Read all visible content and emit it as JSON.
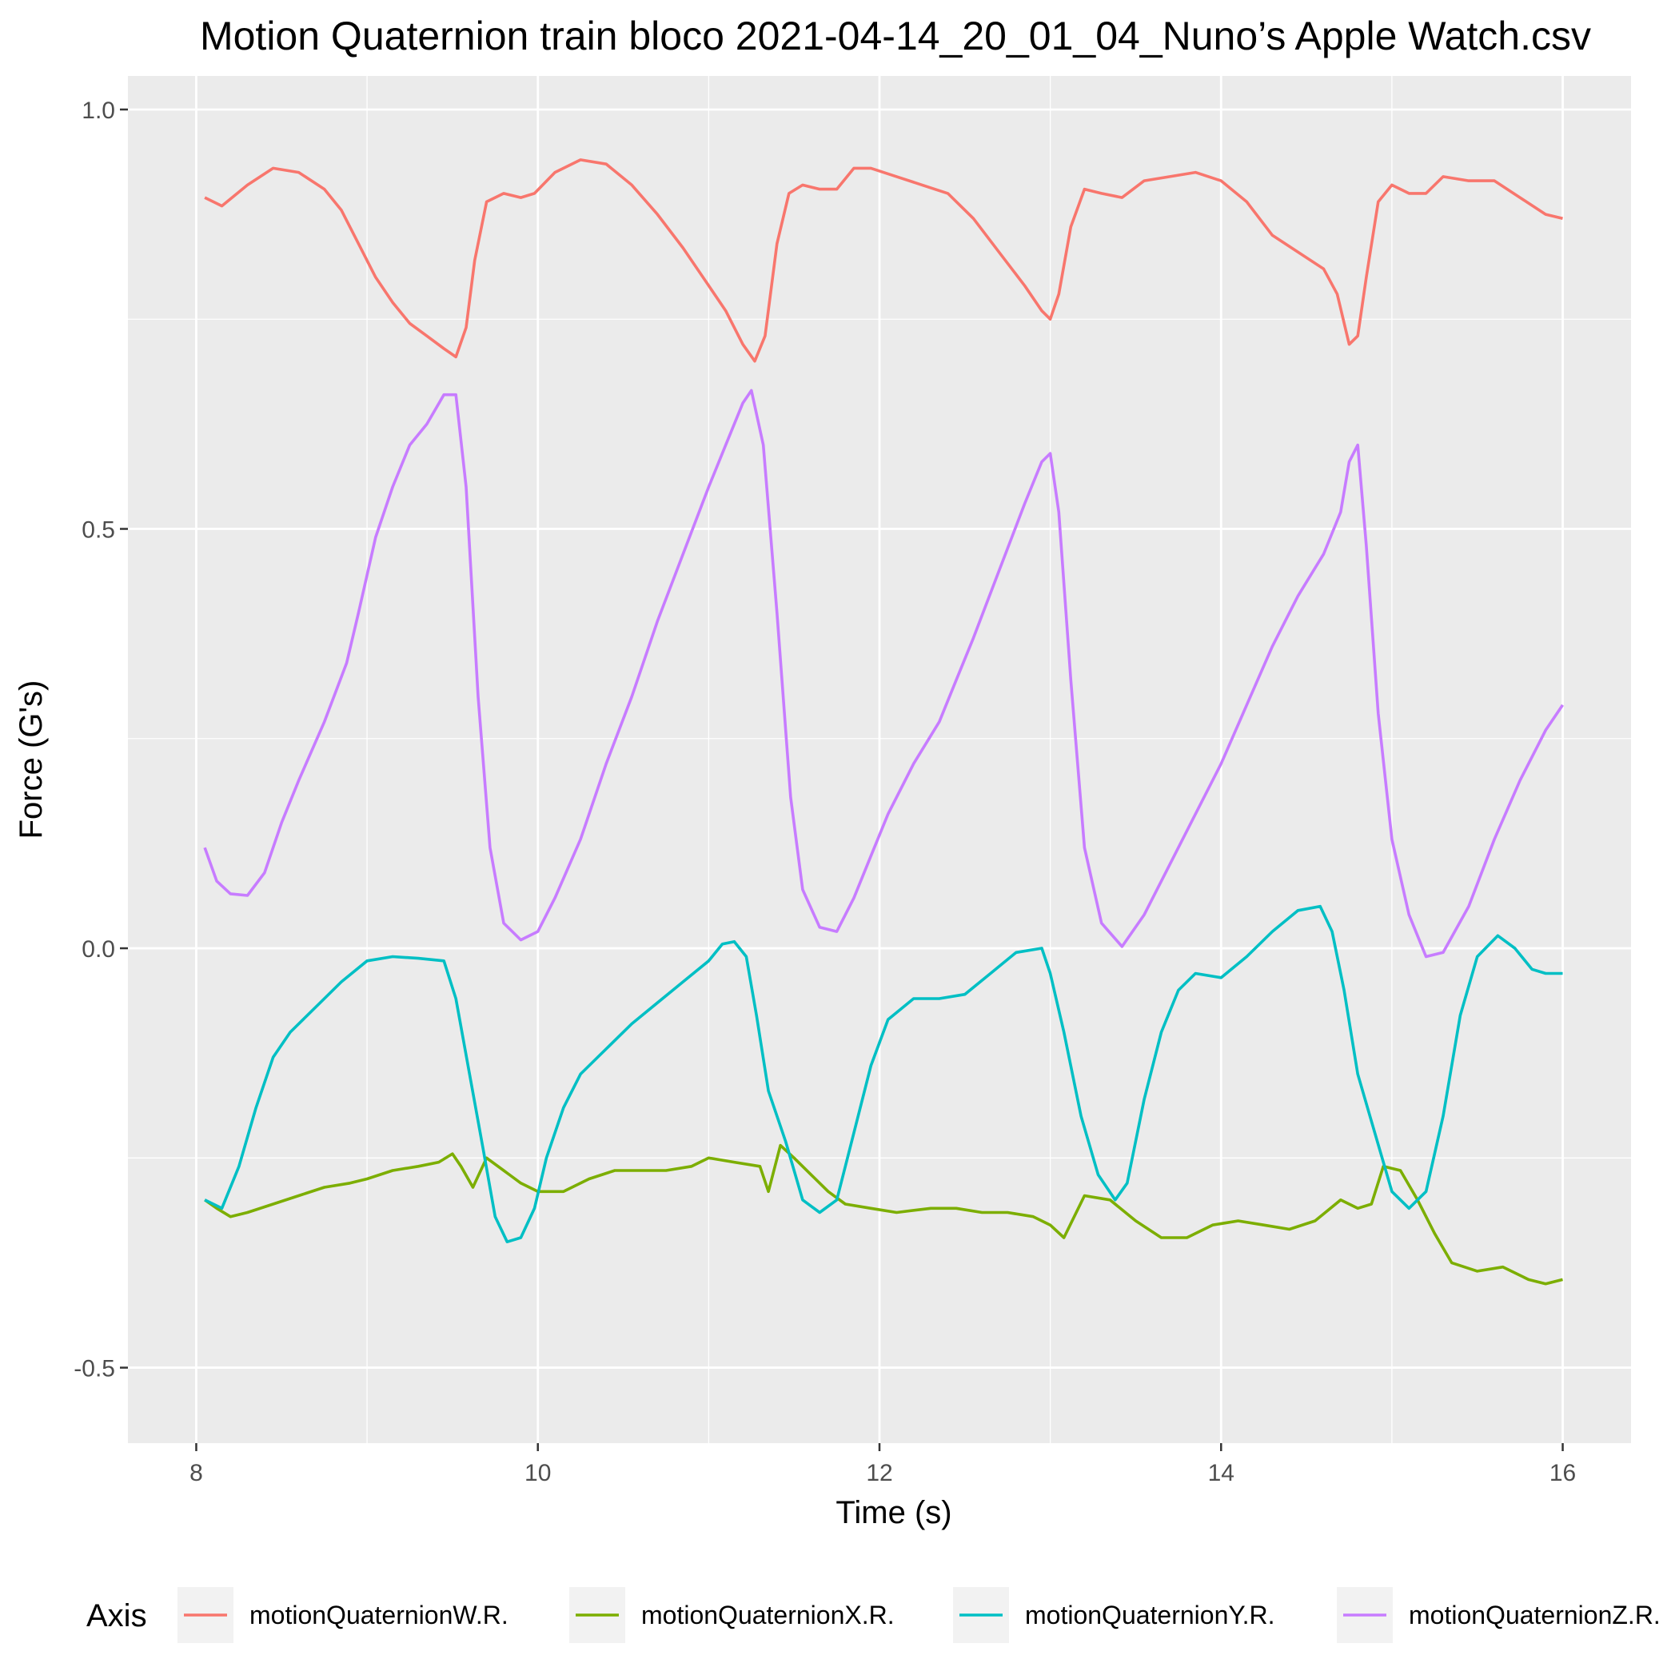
{
  "chart_data": {
    "type": "line",
    "title": "Motion Quaternion train bloco 2021-04-14_20_01_04_Nuno’s Apple Watch.csv",
    "xlabel": "Time (s)",
    "ylabel": "Force (G's)",
    "xlim": [
      7.6,
      16.4
    ],
    "ylim": [
      -0.59,
      1.04
    ],
    "x_ticks": [
      8,
      10,
      12,
      14,
      16
    ],
    "x_tick_labels": [
      "8",
      "10",
      "12",
      "14",
      "16"
    ],
    "y_ticks": [
      -0.5,
      0.0,
      0.5,
      1.0
    ],
    "y_tick_labels": [
      "-0.5",
      "0.0",
      "0.5",
      "1.0"
    ],
    "grid": true,
    "legend": {
      "title": "Axis",
      "position": "bottom"
    },
    "panel_color": "#ebebeb",
    "series": [
      {
        "name": "motionQuaternionW.R.",
        "color": "#F8766D",
        "points": [
          [
            8.05,
            0.895
          ],
          [
            8.15,
            0.885
          ],
          [
            8.3,
            0.91
          ],
          [
            8.45,
            0.93
          ],
          [
            8.6,
            0.925
          ],
          [
            8.75,
            0.905
          ],
          [
            8.85,
            0.88
          ],
          [
            8.95,
            0.84
          ],
          [
            9.05,
            0.8
          ],
          [
            9.15,
            0.77
          ],
          [
            9.25,
            0.745
          ],
          [
            9.35,
            0.73
          ],
          [
            9.45,
            0.715
          ],
          [
            9.52,
            0.705
          ],
          [
            9.58,
            0.74
          ],
          [
            9.63,
            0.82
          ],
          [
            9.7,
            0.89
          ],
          [
            9.8,
            0.9
          ],
          [
            9.9,
            0.895
          ],
          [
            9.98,
            0.9
          ],
          [
            10.1,
            0.925
          ],
          [
            10.25,
            0.94
          ],
          [
            10.4,
            0.935
          ],
          [
            10.55,
            0.91
          ],
          [
            10.7,
            0.875
          ],
          [
            10.85,
            0.835
          ],
          [
            11.0,
            0.79
          ],
          [
            11.1,
            0.76
          ],
          [
            11.2,
            0.72
          ],
          [
            11.27,
            0.7
          ],
          [
            11.33,
            0.73
          ],
          [
            11.4,
            0.84
          ],
          [
            11.47,
            0.9
          ],
          [
            11.55,
            0.91
          ],
          [
            11.65,
            0.905
          ],
          [
            11.75,
            0.905
          ],
          [
            11.85,
            0.93
          ],
          [
            11.95,
            0.93
          ],
          [
            12.1,
            0.92
          ],
          [
            12.25,
            0.91
          ],
          [
            12.4,
            0.9
          ],
          [
            12.55,
            0.87
          ],
          [
            12.7,
            0.83
          ],
          [
            12.85,
            0.79
          ],
          [
            12.95,
            0.76
          ],
          [
            13.0,
            0.75
          ],
          [
            13.05,
            0.78
          ],
          [
            13.12,
            0.86
          ],
          [
            13.2,
            0.905
          ],
          [
            13.3,
            0.9
          ],
          [
            13.42,
            0.895
          ],
          [
            13.55,
            0.915
          ],
          [
            13.7,
            0.92
          ],
          [
            13.85,
            0.925
          ],
          [
            14.0,
            0.915
          ],
          [
            14.15,
            0.89
          ],
          [
            14.3,
            0.85
          ],
          [
            14.45,
            0.83
          ],
          [
            14.6,
            0.81
          ],
          [
            14.68,
            0.78
          ],
          [
            14.75,
            0.72
          ],
          [
            14.8,
            0.73
          ],
          [
            14.85,
            0.8
          ],
          [
            14.92,
            0.89
          ],
          [
            15.0,
            0.91
          ],
          [
            15.1,
            0.9
          ],
          [
            15.2,
            0.9
          ],
          [
            15.3,
            0.92
          ],
          [
            15.45,
            0.915
          ],
          [
            15.6,
            0.915
          ],
          [
            15.75,
            0.895
          ],
          [
            15.9,
            0.875
          ],
          [
            16.0,
            0.87
          ]
        ]
      },
      {
        "name": "motionQuaternionX.R.",
        "color": "#7CAE00",
        "points": [
          [
            8.05,
            -0.3
          ],
          [
            8.12,
            -0.31
          ],
          [
            8.2,
            -0.32
          ],
          [
            8.3,
            -0.315
          ],
          [
            8.45,
            -0.305
          ],
          [
            8.6,
            -0.295
          ],
          [
            8.75,
            -0.285
          ],
          [
            8.9,
            -0.28
          ],
          [
            9.0,
            -0.275
          ],
          [
            9.15,
            -0.265
          ],
          [
            9.3,
            -0.26
          ],
          [
            9.42,
            -0.255
          ],
          [
            9.5,
            -0.245
          ],
          [
            9.55,
            -0.26
          ],
          [
            9.62,
            -0.285
          ],
          [
            9.7,
            -0.25
          ],
          [
            9.8,
            -0.265
          ],
          [
            9.9,
            -0.28
          ],
          [
            10.0,
            -0.29
          ],
          [
            10.15,
            -0.29
          ],
          [
            10.3,
            -0.275
          ],
          [
            10.45,
            -0.265
          ],
          [
            10.6,
            -0.265
          ],
          [
            10.75,
            -0.265
          ],
          [
            10.9,
            -0.26
          ],
          [
            11.0,
            -0.25
          ],
          [
            11.15,
            -0.255
          ],
          [
            11.3,
            -0.26
          ],
          [
            11.35,
            -0.29
          ],
          [
            11.42,
            -0.235
          ],
          [
            11.5,
            -0.25
          ],
          [
            11.6,
            -0.27
          ],
          [
            11.7,
            -0.29
          ],
          [
            11.8,
            -0.305
          ],
          [
            11.95,
            -0.31
          ],
          [
            12.1,
            -0.315
          ],
          [
            12.3,
            -0.31
          ],
          [
            12.45,
            -0.31
          ],
          [
            12.6,
            -0.315
          ],
          [
            12.75,
            -0.315
          ],
          [
            12.9,
            -0.32
          ],
          [
            13.0,
            -0.33
          ],
          [
            13.08,
            -0.345
          ],
          [
            13.2,
            -0.295
          ],
          [
            13.35,
            -0.3
          ],
          [
            13.5,
            -0.325
          ],
          [
            13.65,
            -0.345
          ],
          [
            13.8,
            -0.345
          ],
          [
            13.95,
            -0.33
          ],
          [
            14.1,
            -0.325
          ],
          [
            14.25,
            -0.33
          ],
          [
            14.4,
            -0.335
          ],
          [
            14.55,
            -0.325
          ],
          [
            14.7,
            -0.3
          ],
          [
            14.8,
            -0.31
          ],
          [
            14.88,
            -0.305
          ],
          [
            14.95,
            -0.26
          ],
          [
            15.05,
            -0.265
          ],
          [
            15.15,
            -0.3
          ],
          [
            15.25,
            -0.34
          ],
          [
            15.35,
            -0.375
          ],
          [
            15.5,
            -0.385
          ],
          [
            15.65,
            -0.38
          ],
          [
            15.8,
            -0.395
          ],
          [
            15.9,
            -0.4
          ],
          [
            16.0,
            -0.395
          ]
        ]
      },
      {
        "name": "motionQuaternionY.R.",
        "color": "#00BFC4",
        "points": [
          [
            8.05,
            -0.3
          ],
          [
            8.15,
            -0.31
          ],
          [
            8.25,
            -0.26
          ],
          [
            8.35,
            -0.19
          ],
          [
            8.45,
            -0.13
          ],
          [
            8.55,
            -0.1
          ],
          [
            8.7,
            -0.07
          ],
          [
            8.85,
            -0.04
          ],
          [
            9.0,
            -0.015
          ],
          [
            9.15,
            -0.01
          ],
          [
            9.3,
            -0.012
          ],
          [
            9.45,
            -0.015
          ],
          [
            9.52,
            -0.06
          ],
          [
            9.6,
            -0.15
          ],
          [
            9.68,
            -0.24
          ],
          [
            9.75,
            -0.32
          ],
          [
            9.82,
            -0.35
          ],
          [
            9.9,
            -0.345
          ],
          [
            9.98,
            -0.31
          ],
          [
            10.05,
            -0.25
          ],
          [
            10.15,
            -0.19
          ],
          [
            10.25,
            -0.15
          ],
          [
            10.4,
            -0.12
          ],
          [
            10.55,
            -0.09
          ],
          [
            10.7,
            -0.065
          ],
          [
            10.85,
            -0.04
          ],
          [
            11.0,
            -0.015
          ],
          [
            11.08,
            0.005
          ],
          [
            11.15,
            0.008
          ],
          [
            11.22,
            -0.01
          ],
          [
            11.28,
            -0.08
          ],
          [
            11.35,
            -0.17
          ],
          [
            11.45,
            -0.23
          ],
          [
            11.55,
            -0.3
          ],
          [
            11.65,
            -0.315
          ],
          [
            11.75,
            -0.3
          ],
          [
            11.85,
            -0.22
          ],
          [
            11.95,
            -0.14
          ],
          [
            12.05,
            -0.085
          ],
          [
            12.2,
            -0.06
          ],
          [
            12.35,
            -0.06
          ],
          [
            12.5,
            -0.055
          ],
          [
            12.65,
            -0.03
          ],
          [
            12.8,
            -0.005
          ],
          [
            12.95,
            0.0
          ],
          [
            13.0,
            -0.03
          ],
          [
            13.08,
            -0.1
          ],
          [
            13.18,
            -0.2
          ],
          [
            13.28,
            -0.27
          ],
          [
            13.38,
            -0.3
          ],
          [
            13.45,
            -0.28
          ],
          [
            13.55,
            -0.18
          ],
          [
            13.65,
            -0.1
          ],
          [
            13.75,
            -0.05
          ],
          [
            13.85,
            -0.03
          ],
          [
            14.0,
            -0.035
          ],
          [
            14.15,
            -0.01
          ],
          [
            14.3,
            0.02
          ],
          [
            14.45,
            0.045
          ],
          [
            14.58,
            0.05
          ],
          [
            14.65,
            0.02
          ],
          [
            14.72,
            -0.05
          ],
          [
            14.8,
            -0.15
          ],
          [
            14.9,
            -0.22
          ],
          [
            15.0,
            -0.29
          ],
          [
            15.1,
            -0.31
          ],
          [
            15.2,
            -0.29
          ],
          [
            15.3,
            -0.2
          ],
          [
            15.4,
            -0.08
          ],
          [
            15.5,
            -0.01
          ],
          [
            15.62,
            0.015
          ],
          [
            15.72,
            0.0
          ],
          [
            15.82,
            -0.025
          ],
          [
            15.9,
            -0.03
          ],
          [
            16.0,
            -0.03
          ]
        ]
      },
      {
        "name": "motionQuaternionZ.R.",
        "color": "#C77CFF",
        "points": [
          [
            8.05,
            0.12
          ],
          [
            8.12,
            0.08
          ],
          [
            8.2,
            0.065
          ],
          [
            8.3,
            0.063
          ],
          [
            8.4,
            0.09
          ],
          [
            8.5,
            0.15
          ],
          [
            8.6,
            0.2
          ],
          [
            8.75,
            0.27
          ],
          [
            8.88,
            0.34
          ],
          [
            8.95,
            0.4
          ],
          [
            9.05,
            0.49
          ],
          [
            9.15,
            0.55
          ],
          [
            9.25,
            0.6
          ],
          [
            9.35,
            0.625
          ],
          [
            9.45,
            0.66
          ],
          [
            9.52,
            0.66
          ],
          [
            9.58,
            0.55
          ],
          [
            9.65,
            0.3
          ],
          [
            9.72,
            0.12
          ],
          [
            9.8,
            0.03
          ],
          [
            9.9,
            0.01
          ],
          [
            10.0,
            0.02
          ],
          [
            10.1,
            0.06
          ],
          [
            10.25,
            0.13
          ],
          [
            10.4,
            0.22
          ],
          [
            10.55,
            0.3
          ],
          [
            10.7,
            0.39
          ],
          [
            10.85,
            0.47
          ],
          [
            11.0,
            0.55
          ],
          [
            11.1,
            0.6
          ],
          [
            11.2,
            0.65
          ],
          [
            11.25,
            0.665
          ],
          [
            11.32,
            0.6
          ],
          [
            11.4,
            0.4
          ],
          [
            11.48,
            0.18
          ],
          [
            11.55,
            0.07
          ],
          [
            11.65,
            0.025
          ],
          [
            11.75,
            0.02
          ],
          [
            11.85,
            0.06
          ],
          [
            11.95,
            0.11
          ],
          [
            12.05,
            0.16
          ],
          [
            12.2,
            0.22
          ],
          [
            12.35,
            0.27
          ],
          [
            12.45,
            0.32
          ],
          [
            12.55,
            0.37
          ],
          [
            12.7,
            0.45
          ],
          [
            12.85,
            0.53
          ],
          [
            12.95,
            0.58
          ],
          [
            13.0,
            0.59
          ],
          [
            13.05,
            0.52
          ],
          [
            13.12,
            0.32
          ],
          [
            13.2,
            0.12
          ],
          [
            13.3,
            0.03
          ],
          [
            13.42,
            0.002
          ],
          [
            13.55,
            0.04
          ],
          [
            13.7,
            0.1
          ],
          [
            13.85,
            0.16
          ],
          [
            14.0,
            0.22
          ],
          [
            14.15,
            0.29
          ],
          [
            14.3,
            0.36
          ],
          [
            14.45,
            0.42
          ],
          [
            14.6,
            0.47
          ],
          [
            14.7,
            0.52
          ],
          [
            14.75,
            0.58
          ],
          [
            14.8,
            0.6
          ],
          [
            14.85,
            0.48
          ],
          [
            14.92,
            0.28
          ],
          [
            15.0,
            0.13
          ],
          [
            15.1,
            0.04
          ],
          [
            15.2,
            -0.01
          ],
          [
            15.3,
            -0.005
          ],
          [
            15.45,
            0.05
          ],
          [
            15.6,
            0.13
          ],
          [
            15.75,
            0.2
          ],
          [
            15.9,
            0.26
          ],
          [
            16.0,
            0.29
          ]
        ]
      }
    ]
  }
}
